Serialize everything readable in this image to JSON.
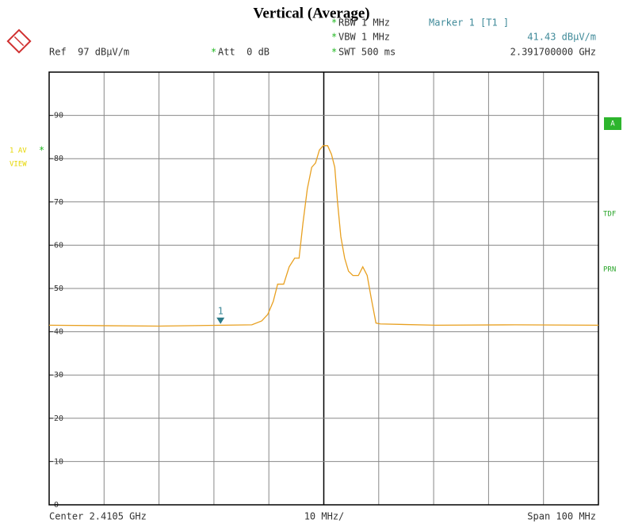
{
  "chart_data": {
    "type": "line",
    "title": "Vertical (Average)",
    "settings": [
      {
        "mark": "*",
        "text": "RBW 1 MHz"
      },
      {
        "mark": "*",
        "text": "VBW 1 MHz"
      },
      {
        "mark": "*",
        "text": "SWT 500 ms"
      }
    ],
    "marker_info": [
      "Marker 1 [T1 ]",
      "41.43 dBµV/m",
      "2.391700000 GHz"
    ],
    "ref_label": "Ref  97 dBµV/m",
    "att": {
      "mark": "*",
      "text": "Att  0 dB"
    },
    "trace_label": {
      "text": "1 AV",
      "mark": "*",
      "mode": "VIEW"
    },
    "side_labels": [
      "A",
      "TDF",
      "PRN"
    ],
    "x_labels": [
      "Center 2.4105 GHz",
      "10 MHz/",
      "Span 100 MHz"
    ],
    "xlim": [
      2360.5,
      2460.5
    ],
    "ylim": [
      0,
      100
    ],
    "yticks": [
      0,
      10,
      20,
      30,
      40,
      50,
      60,
      70,
      80,
      90
    ],
    "grid": true,
    "series": [
      {
        "name": "1 AV",
        "color": "#e8a020",
        "x": [
          2360.5,
          2380.4,
          2397.4,
          2399.2,
          2400.3,
          2401.3,
          2402.1,
          2403.2,
          2404.2,
          2405.2,
          2406.0,
          2406.7,
          2407.5,
          2408.3,
          2409.0,
          2409.7,
          2410.4,
          2411.2,
          2411.9,
          2412.5,
          2413.0,
          2413.6,
          2414.3,
          2415.0,
          2415.8,
          2416.8,
          2417.6,
          2418.4,
          2419.1,
          2420.0,
          2420.8,
          2430.9,
          2445.3,
          2460.5
        ],
        "values": [
          41.5,
          41.3,
          41.6,
          42.5,
          44,
          47,
          51,
          51,
          55,
          57,
          57,
          65,
          73,
          78,
          79,
          82,
          83,
          83,
          81,
          78,
          70,
          62,
          57,
          54,
          53,
          53,
          55,
          53,
          48,
          42,
          41.8,
          41.5,
          41.6,
          41.5
        ]
      }
    ],
    "marker": {
      "label": "1",
      "x": 2391.7,
      "y": 41.43
    }
  }
}
